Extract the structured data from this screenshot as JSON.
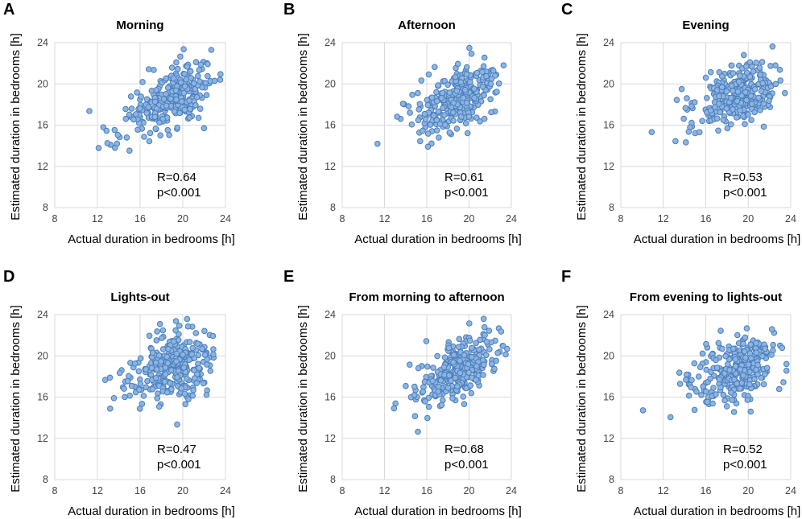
{
  "chart_data": [
    {
      "type": "scatter",
      "letter": "A",
      "title": "Morning",
      "xlabel": "Actual duration in bedrooms [h]",
      "ylabel": "Estimated duration in bedrooms [h]",
      "xlim": [
        8,
        24
      ],
      "ylim": [
        8,
        24
      ],
      "xticks": [
        "8",
        "12",
        "16",
        "20",
        "24"
      ],
      "yticks": [
        "8",
        "12",
        "16",
        "20",
        "24"
      ],
      "grid": true,
      "r_label": "R=0.64",
      "p_label": "p<0.001",
      "r": 0.64,
      "n_points": 300,
      "x_mean": 19.2,
      "x_sd": 2.6,
      "y_mean": 18.6,
      "y_sd": 1.9
    },
    {
      "type": "scatter",
      "letter": "B",
      "title": "Afternoon",
      "xlabel": "Actual duration in bedrooms [h]",
      "ylabel": "Estimated duration in bedrooms [h]",
      "xlim": [
        8,
        24
      ],
      "ylim": [
        8,
        24
      ],
      "xticks": [
        "8",
        "12",
        "16",
        "20",
        "24"
      ],
      "yticks": [
        "8",
        "12",
        "16",
        "20",
        "24"
      ],
      "grid": true,
      "r_label": "R=0.61",
      "p_label": "p<0.001",
      "r": 0.61,
      "n_points": 300,
      "x_mean": 19.3,
      "x_sd": 2.6,
      "y_mean": 18.7,
      "y_sd": 1.8
    },
    {
      "type": "scatter",
      "letter": "C",
      "title": "Evening",
      "xlabel": "Actual duration in bedrooms [h]",
      "ylabel": "Estimated duration in bedrooms [h]",
      "xlim": [
        8,
        24
      ],
      "ylim": [
        8,
        24
      ],
      "xticks": [
        "8",
        "12",
        "16",
        "20",
        "24"
      ],
      "yticks": [
        "8",
        "12",
        "16",
        "20",
        "24"
      ],
      "grid": true,
      "r_label": "R=0.53",
      "p_label": "p<0.001",
      "r": 0.53,
      "n_points": 300,
      "x_mean": 19.3,
      "x_sd": 2.6,
      "y_mean": 18.9,
      "y_sd": 1.7
    },
    {
      "type": "scatter",
      "letter": "D",
      "title": "Lights-out",
      "xlabel": "Actual duration in bedrooms [h]",
      "ylabel": "Estimated duration in bedrooms [h]",
      "xlim": [
        8,
        24
      ],
      "ylim": [
        8,
        24
      ],
      "xticks": [
        "8",
        "12",
        "16",
        "20",
        "24"
      ],
      "yticks": [
        "8",
        "12",
        "16",
        "20",
        "24"
      ],
      "grid": true,
      "r_label": "R=0.47",
      "p_label": "p<0.001",
      "r": 0.47,
      "n_points": 300,
      "x_mean": 19.3,
      "x_sd": 2.6,
      "y_mean": 18.9,
      "y_sd": 1.9
    },
    {
      "type": "scatter",
      "letter": "E",
      "title": "From morning to afternoon",
      "xlabel": "Actual duration in bedrooms [h]",
      "ylabel": "Estimated duration in bedrooms [h]",
      "xlim": [
        8,
        24
      ],
      "ylim": [
        8,
        24
      ],
      "xticks": [
        "8",
        "12",
        "16",
        "20",
        "24"
      ],
      "yticks": [
        "8",
        "12",
        "16",
        "20",
        "24"
      ],
      "grid": true,
      "r_label": "R=0.68",
      "p_label": "p<0.001",
      "r": 0.68,
      "n_points": 300,
      "x_mean": 19.3,
      "x_sd": 2.6,
      "y_mean": 18.7,
      "y_sd": 1.9
    },
    {
      "type": "scatter",
      "letter": "F",
      "title": "From evening to lights-out",
      "xlabel": "Actual duration in bedrooms [h]",
      "ylabel": "Estimated duration in bedrooms [h]",
      "xlim": [
        8,
        24
      ],
      "ylim": [
        8,
        24
      ],
      "xticks": [
        "8",
        "12",
        "16",
        "20",
        "24"
      ],
      "yticks": [
        "8",
        "12",
        "16",
        "20",
        "24"
      ],
      "grid": true,
      "r_label": "R=0.52",
      "p_label": "p<0.001",
      "r": 0.52,
      "n_points": 300,
      "x_mean": 19.3,
      "x_sd": 2.6,
      "y_mean": 18.9,
      "y_sd": 1.8
    }
  ],
  "colors": {
    "marker_fill": "#8db4e2",
    "marker_stroke": "#4a7ebb",
    "grid": "#d9d9d9"
  }
}
